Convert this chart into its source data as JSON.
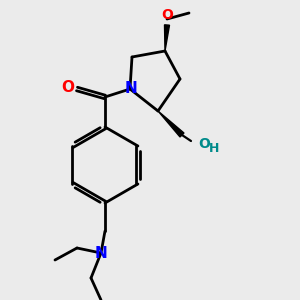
{
  "bg_color": "#ebebeb",
  "bond_color": "#000000",
  "bond_width": 2.0,
  "N_color": "#0000ff",
  "O_red_color": "#ff0000",
  "O_teal_color": "#008b8b",
  "font_size_atom": 10,
  "font_size_small": 9,
  "xlim": [
    0.2,
    3.2
  ],
  "ylim": [
    0.1,
    3.1
  ]
}
